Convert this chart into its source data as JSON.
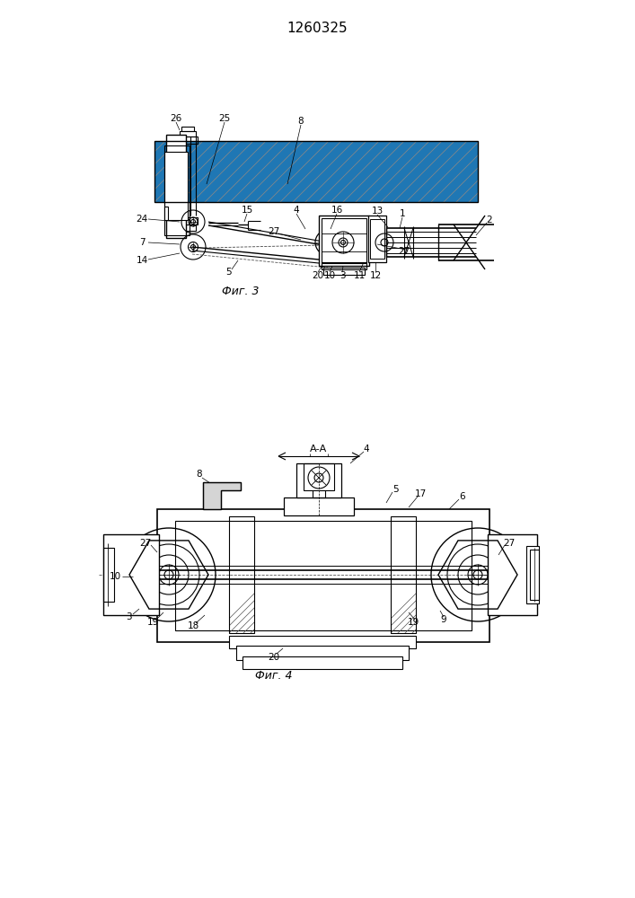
{
  "title": "1260325",
  "title_fontsize": 11,
  "fig1_caption": "Фиг. 3",
  "fig2_caption": "Фиг. 4",
  "bg_color": "#ffffff",
  "line_color": "#000000"
}
